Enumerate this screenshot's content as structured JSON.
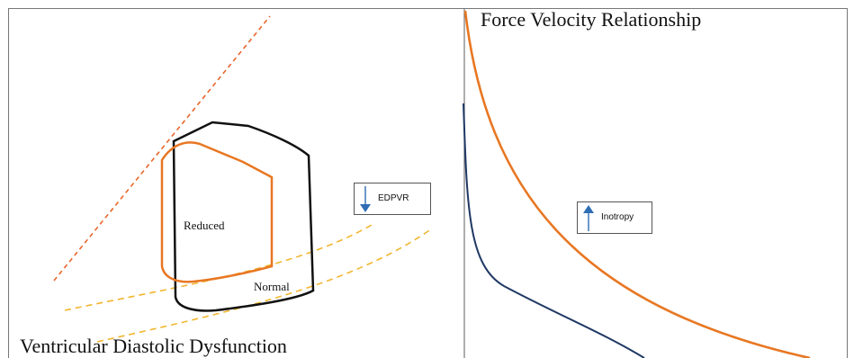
{
  "left_panel": {
    "title": "Ventricular Diastolic Dysfunction",
    "loop_labels": {
      "reduced": "Reduced",
      "normal": "Normal"
    },
    "callout": {
      "label": "EDPVR",
      "arrow_direction": "down",
      "arrow_icon": "arrow-down-icon"
    }
  },
  "right_panel": {
    "title": "Force Velocity Relationship",
    "callout": {
      "label": "Inotropy",
      "arrow_direction": "up",
      "arrow_icon": "arrow-up-icon"
    }
  },
  "colors": {
    "normal_loop": "#111111",
    "reduced_loop": "#E87722",
    "espvr_line": "#E8662A",
    "edpvr_curves": "#F2B630",
    "fv_high_inotropy": "#E87722",
    "fv_baseline": "#1F3864",
    "arrow": "#2E6DB4",
    "border": "#555555"
  }
}
